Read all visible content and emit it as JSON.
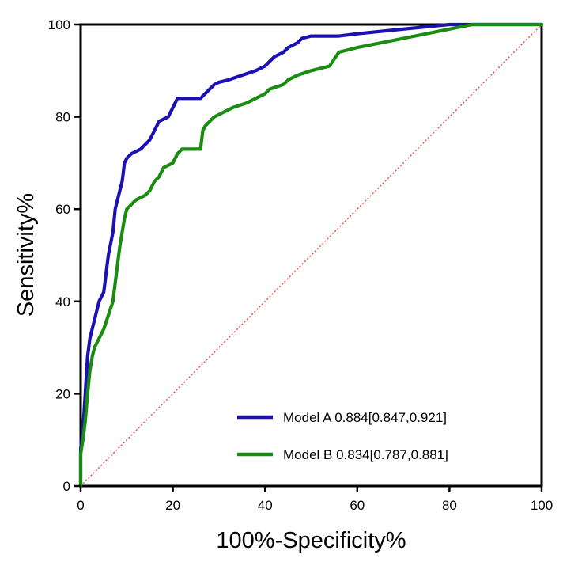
{
  "chart_data": {
    "type": "line",
    "title": "",
    "xlabel": "100%-Specificity%",
    "ylabel": "Sensitivity%",
    "xlim": [
      0,
      100
    ],
    "ylim": [
      0,
      100
    ],
    "x_ticks": [
      "0",
      "20",
      "40",
      "60",
      "80",
      "100"
    ],
    "y_ticks": [
      "0",
      "20",
      "40",
      "60",
      "80",
      "100"
    ],
    "grid": false,
    "legend_position": "bottom-right",
    "series": [
      {
        "name": "Model A 0.884[0.847,0.921]",
        "color": "#1c12b4",
        "points": [
          [
            0,
            0
          ],
          [
            0,
            8
          ],
          [
            0.5,
            12
          ],
          [
            1,
            20
          ],
          [
            1.5,
            28
          ],
          [
            2,
            32
          ],
          [
            3,
            36
          ],
          [
            4,
            40
          ],
          [
            5,
            42
          ],
          [
            5.5,
            46
          ],
          [
            6,
            50
          ],
          [
            7,
            55
          ],
          [
            7.5,
            60
          ],
          [
            8,
            62
          ],
          [
            9,
            66
          ],
          [
            9.5,
            70
          ],
          [
            10,
            71
          ],
          [
            11,
            72
          ],
          [
            13,
            73
          ],
          [
            14,
            74
          ],
          [
            15,
            75
          ],
          [
            16,
            77
          ],
          [
            17,
            79
          ],
          [
            19,
            80
          ],
          [
            20,
            82
          ],
          [
            21,
            84
          ],
          [
            26,
            84
          ],
          [
            27,
            85
          ],
          [
            28,
            86
          ],
          [
            29,
            87
          ],
          [
            30,
            87.5
          ],
          [
            32,
            88
          ],
          [
            35,
            89
          ],
          [
            38,
            90
          ],
          [
            40,
            91
          ],
          [
            41,
            92
          ],
          [
            42,
            93
          ],
          [
            44,
            94
          ],
          [
            45,
            95
          ],
          [
            47,
            96
          ],
          [
            48,
            97
          ],
          [
            50,
            97.5
          ],
          [
            56,
            97.5
          ],
          [
            60,
            98
          ],
          [
            70,
            99
          ],
          [
            80,
            100
          ],
          [
            100,
            100
          ]
        ]
      },
      {
        "name": "Model B 0.834[0.787,0.881]",
        "color": "#1a8c12",
        "points": [
          [
            0,
            0
          ],
          [
            0,
            7
          ],
          [
            0.5,
            10
          ],
          [
            1,
            14
          ],
          [
            1.5,
            20
          ],
          [
            2,
            25
          ],
          [
            2.5,
            28
          ],
          [
            3,
            30
          ],
          [
            4,
            32
          ],
          [
            5,
            34
          ],
          [
            6,
            37
          ],
          [
            7,
            40
          ],
          [
            7.5,
            44
          ],
          [
            8,
            48
          ],
          [
            8.5,
            52
          ],
          [
            9,
            55
          ],
          [
            9.5,
            58
          ],
          [
            10,
            60
          ],
          [
            11,
            61
          ],
          [
            12,
            62
          ],
          [
            14,
            63
          ],
          [
            15,
            64
          ],
          [
            16,
            66
          ],
          [
            17,
            67
          ],
          [
            18,
            69
          ],
          [
            20,
            70
          ],
          [
            21,
            72
          ],
          [
            22,
            73
          ],
          [
            26,
            73
          ],
          [
            26.5,
            77
          ],
          [
            27,
            78
          ],
          [
            28,
            79
          ],
          [
            29,
            80
          ],
          [
            31,
            81
          ],
          [
            33,
            82
          ],
          [
            36,
            83
          ],
          [
            38,
            84
          ],
          [
            40,
            85
          ],
          [
            41,
            86
          ],
          [
            44,
            87
          ],
          [
            45,
            88
          ],
          [
            47,
            89
          ],
          [
            50,
            90
          ],
          [
            54,
            91
          ],
          [
            56,
            94
          ],
          [
            60,
            95
          ],
          [
            70,
            97
          ],
          [
            80,
            99
          ],
          [
            85,
            100
          ],
          [
            100,
            100
          ]
        ]
      },
      {
        "name": "",
        "color": "#e03a3a",
        "style": "dotted",
        "points": [
          [
            0,
            0
          ],
          [
            100,
            100
          ]
        ]
      }
    ]
  }
}
